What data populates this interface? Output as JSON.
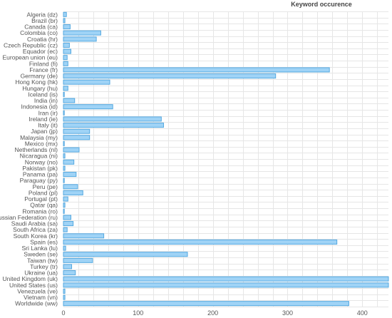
{
  "chart_data": {
    "type": "bar",
    "orientation": "horizontal",
    "title": "",
    "xlabel": "",
    "ylabel": "",
    "legend": {
      "label": "Keyword occurence",
      "placement": "top-right"
    },
    "grid": true,
    "xlim": [
      0,
      435
    ],
    "x_ticks": [
      0,
      100,
      200,
      300,
      400
    ],
    "bar_color": "#9fd3f6",
    "bar_border_color": "#55a9e0",
    "categories": [
      "Algeria (dz)",
      "Brazil (br)",
      "Canada (ca)",
      "Colombia (co)",
      "Croatia (hr)",
      "Czech Republic (cz)",
      "Equador (ec)",
      "European union (eu)",
      "Finland (fi)",
      "France (fr)",
      "Germany (de)",
      "Hong Kong (hk)",
      "Hungary (hu)",
      "Iceland (is)",
      "India (in)",
      "Indonesia (id)",
      "Iran (ir)",
      "Ireland (ie)",
      "Italy (it)",
      "Japan (jp)",
      "Malaysia (my)",
      "Mexico (mx)",
      "Netherlands (nl)",
      "Nicaragua (ni)",
      "Norway (no)",
      "Pakistan (pk)",
      "Panama (pa)",
      "Paraguay (py)",
      "Peru (pe)",
      "Poland (pl)",
      "Portugal (pt)",
      "Qatar (qa)",
      "Romania (ro)",
      "Russian Federation (ru)",
      "Saudi Arabia (sa)",
      "South Africa (za)",
      "South Korea (kr)",
      "Spain (es)",
      "Sri Lanka (lu)",
      "Sweden (se)",
      "Taiwan (tw)",
      "Turkey (tr)",
      "Ukraine (ua)",
      "United Kingdom (uk)",
      "United States (us)",
      "Venezuela (ve)",
      "Vietnam (vn)",
      "Worldwide (ww)"
    ],
    "values": [
      4,
      2,
      9,
      50,
      44,
      8,
      10,
      5,
      6,
      356,
      284,
      62,
      6,
      1,
      15,
      66,
      1,
      131,
      134,
      35,
      35,
      1,
      21,
      2,
      14,
      2,
      17,
      1,
      19,
      26,
      6,
      2,
      1,
      10,
      13,
      5,
      54,
      366,
      3,
      166,
      39,
      11,
      16,
      435,
      435,
      2,
      2,
      382
    ]
  }
}
